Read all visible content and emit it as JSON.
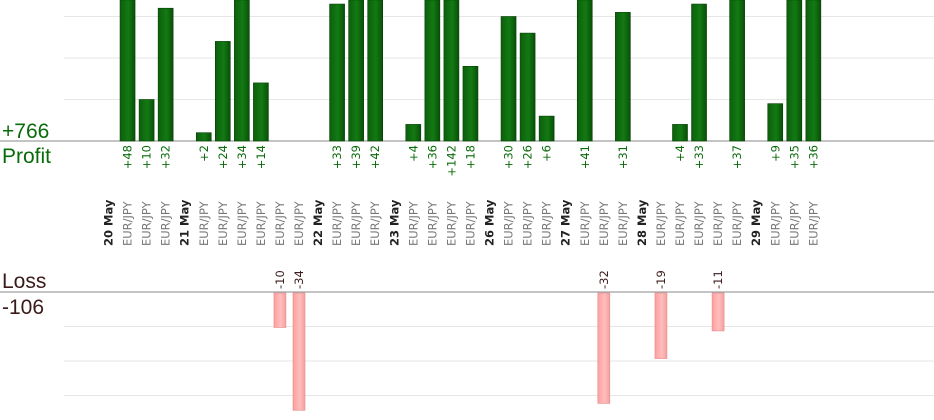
{
  "summary": {
    "profit_total": "+766",
    "profit_label": "Profit",
    "loss_label": "Loss",
    "loss_total": "-106"
  },
  "colors": {
    "profit_bar": "#0f6e0f",
    "profit_bar_edge": "#063f06",
    "profit_text": "#0a6b0a",
    "loss_bar": "#ffaaaa",
    "loss_bar_edge": "#e58a8a",
    "loss_text": "#3a1a1a",
    "grid": "#e6e6e6",
    "axis": "#888888"
  },
  "chart_data": {
    "type": "bar",
    "profit_scale_max": 34,
    "loss_scale_max": 34,
    "profit_grid_step": 10,
    "loss_grid_step": 10,
    "slots": [
      {
        "day": "20 May"
      },
      {
        "pair": "EUR/JPY",
        "value": 48
      },
      {
        "pair": "EUR/JPY",
        "value": 10
      },
      {
        "pair": "EUR/JPY",
        "value": 32
      },
      {
        "day": "21 May"
      },
      {
        "pair": "EUR/JPY",
        "value": 2
      },
      {
        "pair": "EUR/JPY",
        "value": 24
      },
      {
        "pair": "EUR/JPY",
        "value": 34
      },
      {
        "pair": "EUR/JPY",
        "value": 14
      },
      {
        "pair": "EUR/JPY",
        "value": -10
      },
      {
        "pair": "EUR/JPY",
        "value": -34
      },
      {
        "day": "22 May"
      },
      {
        "pair": "EUR/JPY",
        "value": 33
      },
      {
        "pair": "EUR/JPY",
        "value": 39
      },
      {
        "pair": "EUR/JPY",
        "value": 42
      },
      {
        "day": "23 May"
      },
      {
        "pair": "EUR/JPY",
        "value": 4
      },
      {
        "pair": "EUR/JPY",
        "value": 36
      },
      {
        "pair": "EUR/JPY",
        "value": 142
      },
      {
        "pair": "EUR/JPY",
        "value": 18
      },
      {
        "day": "26 May"
      },
      {
        "pair": "EUR/JPY",
        "value": 30
      },
      {
        "pair": "EUR/JPY",
        "value": 26
      },
      {
        "pair": "EUR/JPY",
        "value": 6
      },
      {
        "day": "27 May"
      },
      {
        "pair": "EUR/JPY",
        "value": 41
      },
      {
        "pair": "EUR/JPY",
        "value": -32
      },
      {
        "pair": "EUR/JPY",
        "value": 31
      },
      {
        "day": "28 May"
      },
      {
        "pair": "EUR/JPY",
        "value": -19
      },
      {
        "pair": "EUR/JPY",
        "value": 4
      },
      {
        "pair": "EUR/JPY",
        "value": 33
      },
      {
        "pair": "EUR/JPY",
        "value": -11
      },
      {
        "pair": "EUR/JPY",
        "value": 37
      },
      {
        "day": "29 May"
      },
      {
        "pair": "EUR/JPY",
        "value": 9
      },
      {
        "pair": "EUR/JPY",
        "value": 35
      },
      {
        "pair": "EUR/JPY",
        "value": 36
      }
    ]
  }
}
